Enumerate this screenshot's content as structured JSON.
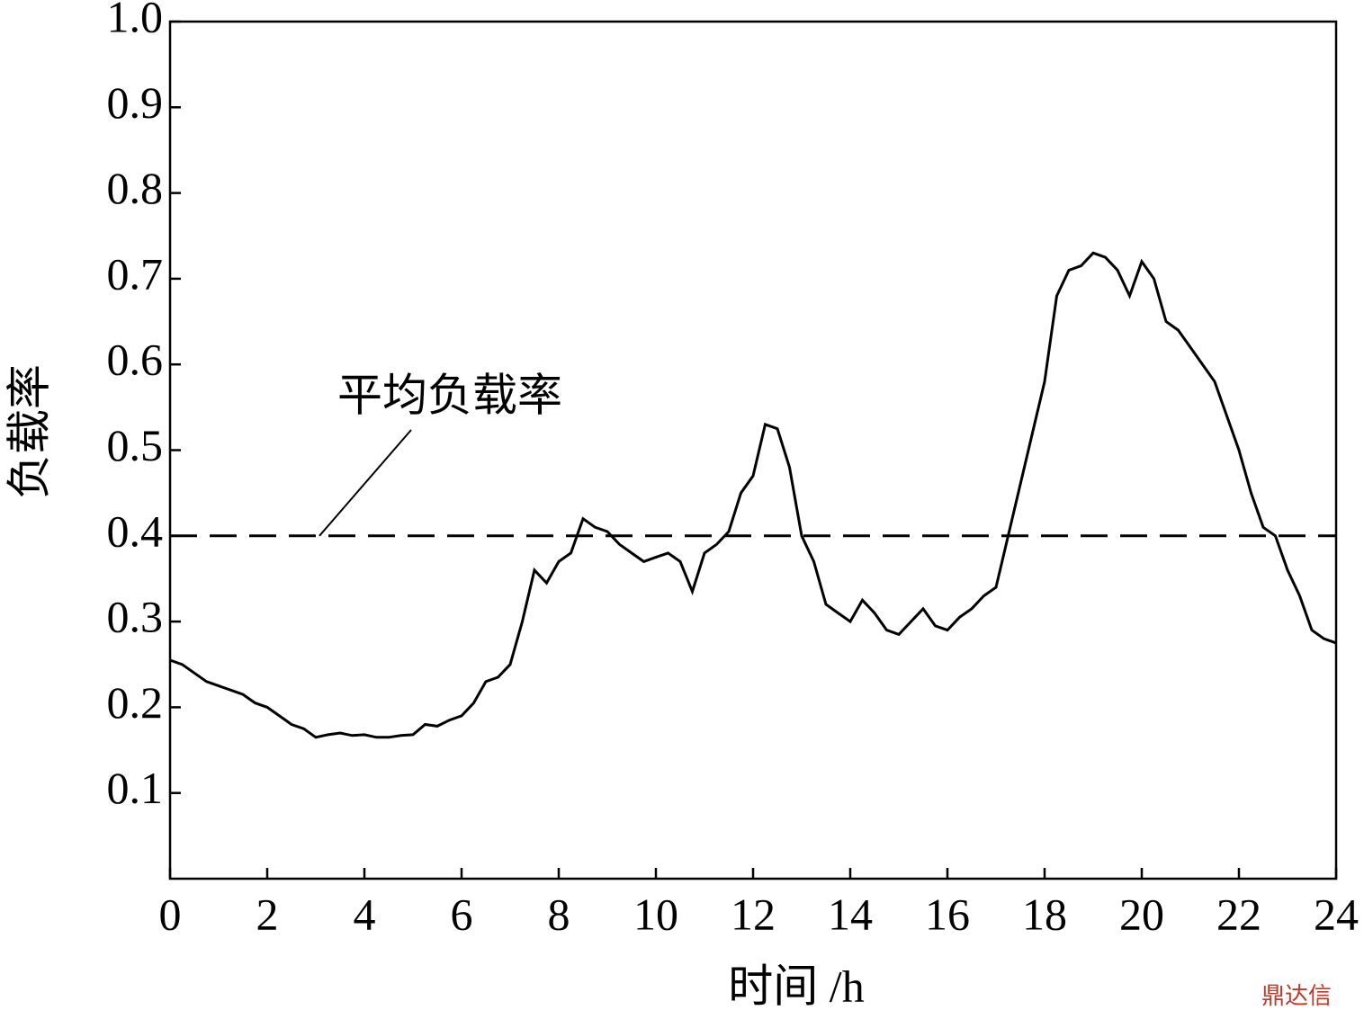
{
  "chart_data": {
    "type": "line",
    "x_label": "时间 /h",
    "y_label": "负载率",
    "x": [
      0,
      0.25,
      0.5,
      0.75,
      1,
      1.25,
      1.5,
      1.75,
      2,
      2.25,
      2.5,
      2.75,
      3,
      3.25,
      3.5,
      3.75,
      4,
      4.25,
      4.5,
      4.75,
      5,
      5.25,
      5.5,
      5.75,
      6,
      6.25,
      6.5,
      6.75,
      7,
      7.25,
      7.5,
      7.75,
      8,
      8.25,
      8.5,
      8.75,
      9,
      9.25,
      9.5,
      9.75,
      10,
      10.25,
      10.5,
      10.75,
      11,
      11.25,
      11.5,
      11.75,
      12,
      12.25,
      12.5,
      12.75,
      13,
      13.25,
      13.5,
      13.75,
      14,
      14.25,
      14.5,
      14.75,
      15,
      15.25,
      15.5,
      15.75,
      16,
      16.25,
      16.5,
      16.75,
      17,
      17.25,
      17.5,
      17.75,
      18,
      18.25,
      18.5,
      18.75,
      19,
      19.25,
      19.5,
      19.75,
      20,
      20.25,
      20.5,
      20.75,
      21,
      21.25,
      21.5,
      21.75,
      22,
      22.25,
      22.5,
      22.75,
      23,
      23.25,
      23.5,
      23.75,
      24
    ],
    "series": [
      {
        "name": "负载率",
        "color": "#000000",
        "values": [
          0.255,
          0.25,
          0.24,
          0.23,
          0.225,
          0.22,
          0.215,
          0.205,
          0.2,
          0.19,
          0.18,
          0.175,
          0.165,
          0.168,
          0.17,
          0.167,
          0.168,
          0.165,
          0.165,
          0.167,
          0.168,
          0.18,
          0.178,
          0.185,
          0.19,
          0.205,
          0.23,
          0.235,
          0.25,
          0.3,
          0.36,
          0.345,
          0.37,
          0.38,
          0.42,
          0.41,
          0.405,
          0.39,
          0.38,
          0.37,
          0.375,
          0.38,
          0.37,
          0.335,
          0.38,
          0.39,
          0.405,
          0.45,
          0.47,
          0.53,
          0.525,
          0.48,
          0.4,
          0.37,
          0.32,
          0.31,
          0.3,
          0.325,
          0.31,
          0.29,
          0.285,
          0.3,
          0.315,
          0.295,
          0.29,
          0.305,
          0.315,
          0.33,
          0.34,
          0.4,
          0.46,
          0.52,
          0.58,
          0.68,
          0.71,
          0.715,
          0.73,
          0.725,
          0.71,
          0.68,
          0.72,
          0.7,
          0.65,
          0.64,
          0.62,
          0.6,
          0.58,
          0.54,
          0.5,
          0.45,
          0.41,
          0.4,
          0.36,
          0.33,
          0.29,
          0.28,
          0.275
        ]
      }
    ],
    "reference_line": {
      "value": 0.4,
      "label": "平均负载率"
    },
    "xlim": [
      0,
      24
    ],
    "xticks": [
      0,
      2,
      4,
      6,
      8,
      10,
      12,
      14,
      16,
      18,
      20,
      22,
      24
    ],
    "ylim": [
      0,
      1
    ],
    "yticks": [
      0.1,
      0.2,
      0.3,
      0.4,
      0.5,
      0.6,
      0.7,
      0.8,
      0.9,
      {
        "value": 1,
        "label": "1.0"
      }
    ],
    "watermark": "鼎达信"
  }
}
